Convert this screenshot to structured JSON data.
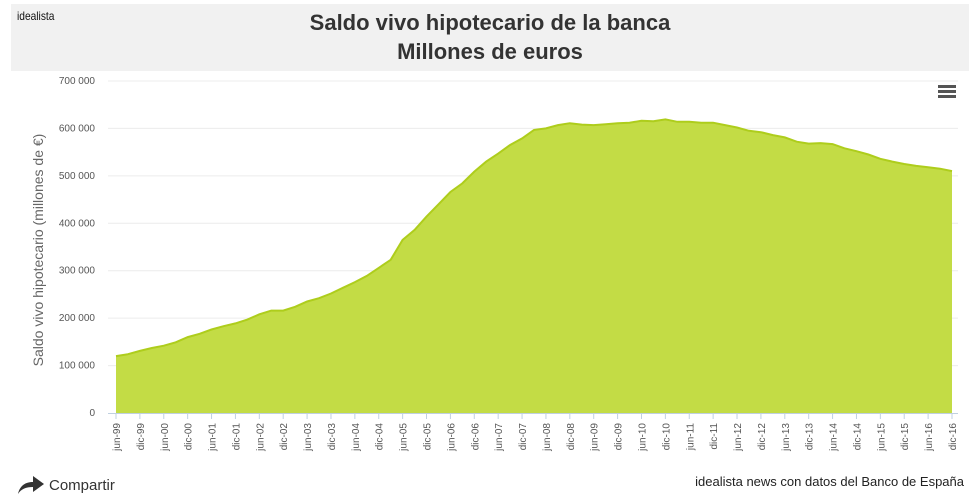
{
  "header": {
    "brand": "idealista",
    "title_line1": "Saldo vivo hipotecario de la banca",
    "title_line2": "Millones de euros"
  },
  "footer": {
    "share_label": "Compartir",
    "credit": "idealista news con datos del Banco de España"
  },
  "icons": {
    "menu": "hamburger-menu-icon",
    "share": "share-arrow-icon"
  },
  "colors": {
    "area": "#c3dc45",
    "line": "#aecd1c",
    "header_bg": "#f1f1f1"
  },
  "chart_data": {
    "type": "area",
    "title": "Saldo vivo hipotecario de la banca",
    "subtitle": "Millones de euros",
    "xlabel": "",
    "ylabel": "Saldo vivo hipotecario (millones de €)",
    "ylim": [
      0,
      700000
    ],
    "yticks": [
      0,
      100000,
      200000,
      300000,
      400000,
      500000,
      600000,
      700000
    ],
    "ytick_labels": [
      "0",
      "100 000",
      "200 000",
      "300 000",
      "400 000",
      "500 000",
      "600 000",
      "700 000"
    ],
    "grid": true,
    "frequency": "quarterly",
    "x_tick_labels": [
      "jun-99",
      "dic-99",
      "jun-00",
      "dic-00",
      "jun-01",
      "dic-01",
      "jun-02",
      "dic-02",
      "jun-03",
      "dic-03",
      "jun-04",
      "dic-04",
      "jun-05",
      "dic-05",
      "jun-06",
      "dic-06",
      "jun-07",
      "dic-07",
      "jun-08",
      "dic-08",
      "jun-09",
      "dic-09",
      "jun-10",
      "dic-10",
      "jun-11",
      "dic-11",
      "jun-12",
      "dic-12",
      "jun-13",
      "dic-13",
      "jun-14",
      "dic-14",
      "jun-15",
      "dic-15",
      "jun-16",
      "dic-16"
    ],
    "series": [
      {
        "name": "Saldo vivo hipotecario",
        "values": [
          120000,
          124000,
          131000,
          137000,
          142000,
          149000,
          160000,
          167000,
          176000,
          183000,
          189000,
          197000,
          208000,
          216000,
          216000,
          224000,
          235000,
          242000,
          252000,
          264000,
          276000,
          289000,
          306000,
          323000,
          365000,
          386000,
          414000,
          440000,
          466000,
          484000,
          509000,
          530000,
          547000,
          565000,
          579000,
          597000,
          600000,
          607000,
          611000,
          608000,
          607000,
          609000,
          611000,
          612000,
          616000,
          615000,
          619000,
          614000,
          614000,
          612000,
          612000,
          607000,
          602000,
          595000,
          592000,
          586000,
          581000,
          572000,
          568000,
          569000,
          567000,
          558000,
          552000,
          545000,
          536000,
          530000,
          525000,
          521000,
          518000,
          515000,
          510000
        ]
      }
    ]
  }
}
